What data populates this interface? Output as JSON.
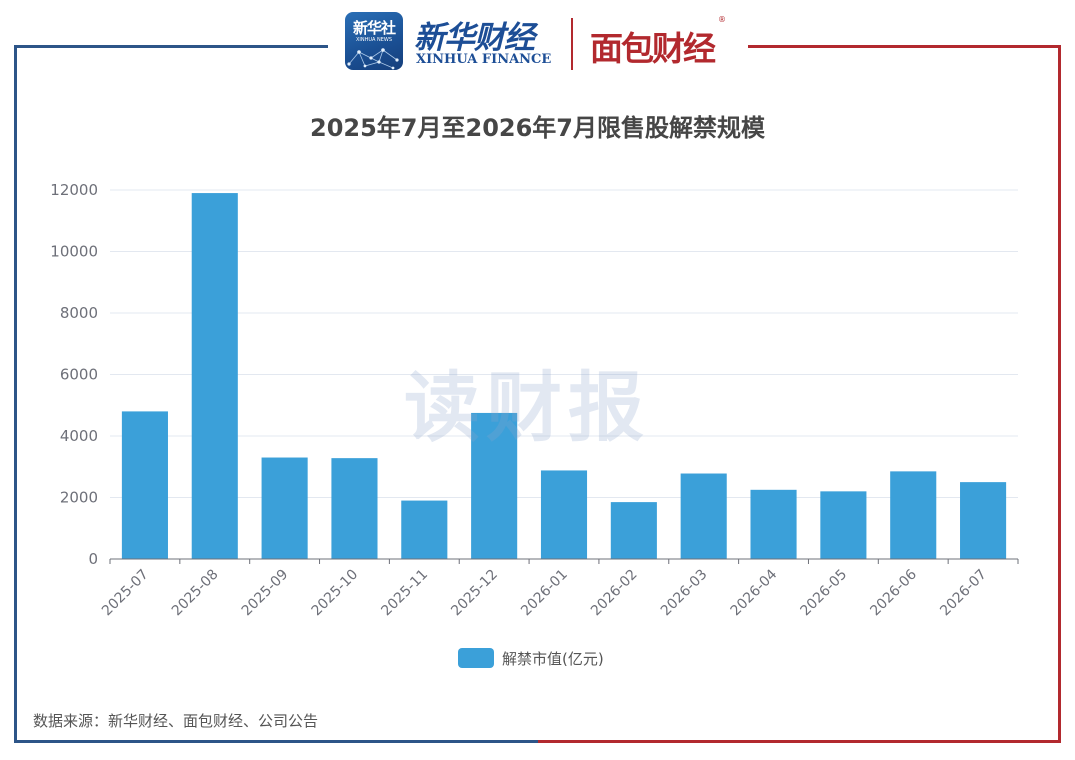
{
  "header": {
    "xinhua_square_text": "新华社",
    "xinhua_square_sub": "XINHUA NEWS",
    "xinhua_cn": "新华财经",
    "xinhua_en": "XINHUA FINANCE",
    "mianbao": "面包财经",
    "registered_mark": "®"
  },
  "watermark": "读财报",
  "source_note": "数据来源：新华财经、面包财经、公司公告",
  "colors": {
    "bar": "#3ba0d9",
    "frame_left": "#2d5588",
    "frame_right": "#b2292e",
    "grid": "#e3e8f0",
    "axis_text": "#6e7079"
  },
  "chart_data": {
    "type": "bar",
    "title": "2025年7月至2026年7月限售股解禁规模",
    "categories": [
      "2025-07",
      "2025-08",
      "2025-09",
      "2025-10",
      "2025-11",
      "2025-12",
      "2026-01",
      "2026-02",
      "2026-03",
      "2026-04",
      "2026-05",
      "2026-06",
      "2026-07"
    ],
    "series": [
      {
        "name": "解禁市值(亿元)",
        "values": [
          4800,
          11900,
          3300,
          3280,
          1900,
          4750,
          2880,
          1850,
          2780,
          2250,
          2200,
          2850,
          2500
        ]
      }
    ],
    "ylim": [
      0,
      12000
    ],
    "yticks": [
      0,
      2000,
      4000,
      6000,
      8000,
      10000,
      12000
    ],
    "xlabel": "",
    "ylabel": "",
    "grid": true,
    "legend_position": "bottom-center"
  }
}
